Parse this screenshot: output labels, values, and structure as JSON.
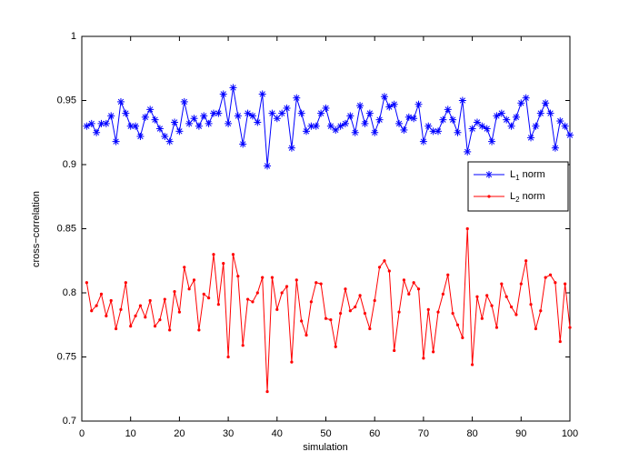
{
  "chart_data": {
    "type": "line",
    "x_label": "simulation",
    "y_label": "cross−correlation",
    "x": [
      1,
      2,
      3,
      4,
      5,
      6,
      7,
      8,
      9,
      10,
      11,
      12,
      13,
      14,
      15,
      16,
      17,
      18,
      19,
      20,
      21,
      22,
      23,
      24,
      25,
      26,
      27,
      28,
      29,
      30,
      31,
      32,
      33,
      34,
      35,
      36,
      37,
      38,
      39,
      40,
      41,
      42,
      43,
      44,
      45,
      46,
      47,
      48,
      49,
      50,
      51,
      52,
      53,
      54,
      55,
      56,
      57,
      58,
      59,
      60,
      61,
      62,
      63,
      64,
      65,
      66,
      67,
      68,
      69,
      70,
      71,
      72,
      73,
      74,
      75,
      76,
      77,
      78,
      79,
      80,
      81,
      82,
      83,
      84,
      85,
      86,
      87,
      88,
      89,
      90,
      91,
      92,
      93,
      94,
      95,
      96,
      97,
      98,
      99,
      100
    ],
    "series": [
      {
        "name": "L1 norm",
        "color": "#0000ff",
        "marker": "asterisk",
        "values": [
          0.93,
          0.932,
          0.925,
          0.932,
          0.932,
          0.938,
          0.918,
          0.949,
          0.94,
          0.93,
          0.93,
          0.922,
          0.937,
          0.943,
          0.935,
          0.928,
          0.922,
          0.918,
          0.933,
          0.926,
          0.949,
          0.932,
          0.936,
          0.93,
          0.938,
          0.932,
          0.94,
          0.94,
          0.955,
          0.932,
          0.96,
          0.938,
          0.916,
          0.94,
          0.938,
          0.933,
          0.955,
          0.899,
          0.94,
          0.936,
          0.94,
          0.944,
          0.913,
          0.952,
          0.94,
          0.926,
          0.93,
          0.93,
          0.94,
          0.944,
          0.93,
          0.927,
          0.93,
          0.932,
          0.938,
          0.925,
          0.946,
          0.932,
          0.94,
          0.925,
          0.935,
          0.953,
          0.945,
          0.947,
          0.932,
          0.927,
          0.937,
          0.936,
          0.947,
          0.918,
          0.93,
          0.926,
          0.926,
          0.935,
          0.943,
          0.935,
          0.925,
          0.95,
          0.91,
          0.928,
          0.933,
          0.93,
          0.928,
          0.918,
          0.938,
          0.94,
          0.935,
          0.93,
          0.937,
          0.948,
          0.952,
          0.921,
          0.93,
          0.94,
          0.948,
          0.94,
          0.913,
          0.934,
          0.93,
          0.923
        ]
      },
      {
        "name": "L2 norm",
        "color": "#ff0000",
        "marker": "dot",
        "values": [
          0.808,
          0.786,
          0.79,
          0.799,
          0.782,
          0.794,
          0.772,
          0.787,
          0.808,
          0.774,
          0.782,
          0.79,
          0.781,
          0.794,
          0.774,
          0.779,
          0.795,
          0.771,
          0.801,
          0.785,
          0.82,
          0.803,
          0.81,
          0.771,
          0.799,
          0.796,
          0.83,
          0.791,
          0.823,
          0.75,
          0.83,
          0.813,
          0.759,
          0.795,
          0.793,
          0.8,
          0.812,
          0.723,
          0.812,
          0.787,
          0.8,
          0.805,
          0.746,
          0.81,
          0.778,
          0.767,
          0.793,
          0.808,
          0.807,
          0.78,
          0.779,
          0.758,
          0.784,
          0.803,
          0.786,
          0.789,
          0.798,
          0.784,
          0.772,
          0.794,
          0.82,
          0.825,
          0.817,
          0.755,
          0.785,
          0.81,
          0.799,
          0.808,
          0.803,
          0.749,
          0.787,
          0.754,
          0.785,
          0.799,
          0.814,
          0.784,
          0.775,
          0.765,
          0.85,
          0.744,
          0.797,
          0.78,
          0.798,
          0.79,
          0.773,
          0.807,
          0.797,
          0.789,
          0.783,
          0.807,
          0.825,
          0.791,
          0.772,
          0.786,
          0.812,
          0.814,
          0.808,
          0.762,
          0.807,
          0.773
        ]
      }
    ],
    "xlim": [
      0,
      100
    ],
    "xticks": [
      0,
      10,
      20,
      30,
      40,
      50,
      60,
      70,
      80,
      90,
      100
    ],
    "ylim": [
      0.7,
      1
    ],
    "yticks": [
      0.7,
      0.75,
      0.8,
      0.85,
      0.9,
      0.95,
      1
    ],
    "legend_position": "right"
  }
}
